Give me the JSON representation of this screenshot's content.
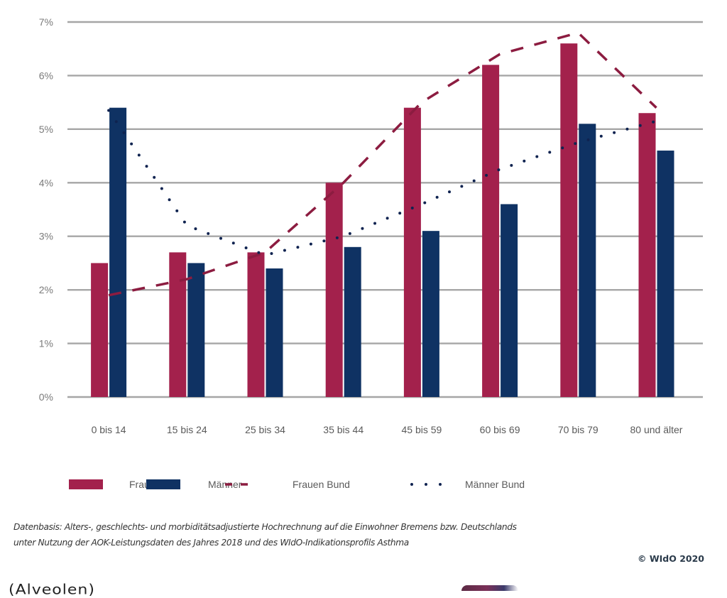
{
  "chart_data": {
    "type": "bar",
    "title": "",
    "xlabel": "",
    "ylabel": "",
    "categories": [
      "0 bis 14",
      "15 bis 24",
      "25 bis 34",
      "35 bis 44",
      "45 bis 59",
      "60 bis 69",
      "70 bis 79",
      "80 und älter"
    ],
    "ylim": [
      0,
      7
    ],
    "yticks": [
      0,
      1,
      2,
      3,
      4,
      5,
      6,
      7
    ],
    "ytick_labels": [
      "0%",
      "1%",
      "2%",
      "3%",
      "4%",
      "5%",
      "6%",
      "7%"
    ],
    "grid": true,
    "legend_position": "bottom",
    "series": [
      {
        "name": "Frauen",
        "type": "bar",
        "color": "#a3214c",
        "values": [
          2.5,
          2.7,
          2.7,
          4.0,
          5.4,
          6.2,
          6.6,
          5.3
        ]
      },
      {
        "name": "Männer",
        "type": "bar",
        "color": "#0f3263",
        "values": [
          5.4,
          2.5,
          2.4,
          2.8,
          3.1,
          3.6,
          5.1,
          4.6
        ]
      },
      {
        "name": "Frauen Bund",
        "type": "line",
        "style": "dashed",
        "color": "#8c1c40",
        "values": [
          1.9,
          2.2,
          2.7,
          4.0,
          5.5,
          6.4,
          6.8,
          5.4
        ]
      },
      {
        "name": "Männer Bund",
        "type": "line",
        "style": "dotted",
        "color": "#0f2350",
        "values": [
          5.35,
          3.2,
          2.65,
          3.0,
          3.6,
          4.25,
          4.75,
          5.15
        ]
      }
    ]
  },
  "footnote": {
    "line1": "Datenbasis: Alters-, geschlechts- und morbiditätsadjustierte Hochrechnung auf die Einwohner Bremens bzw. Deutschlands",
    "line2": "unter Nutzung der AOK-Leistungsdaten des Jahres 2018 und des WIdO-Indikationsprofils Asthma",
    "copyright": "© WIdO 2020"
  },
  "cutoff_text": "(Alveolen)"
}
